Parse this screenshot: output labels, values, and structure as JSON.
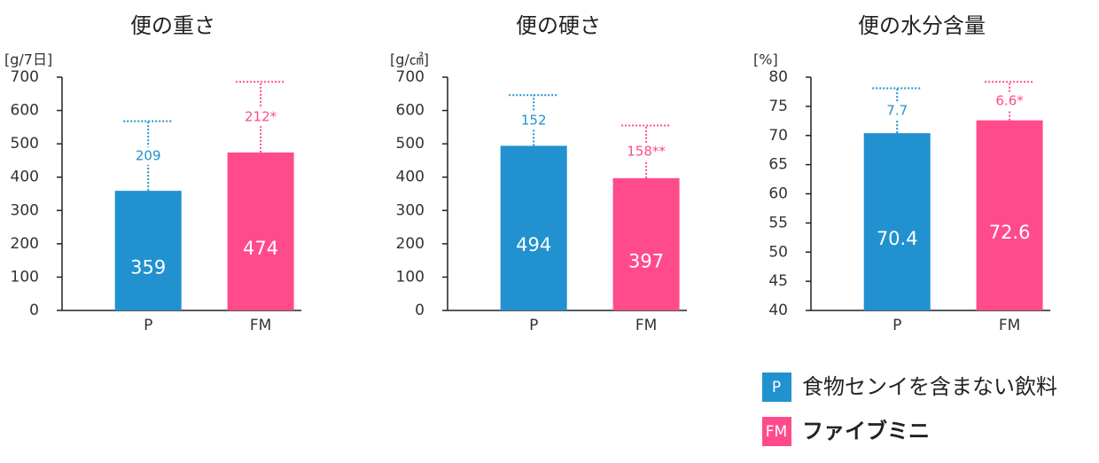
{
  "chart_data": [
    {
      "type": "bar",
      "title": "便の重さ",
      "y_label": "[g/7日]",
      "categories": [
        "P",
        "FM"
      ],
      "values": [
        359,
        474
      ],
      "errors": [
        209,
        212
      ],
      "error_labels": [
        "209",
        "212*"
      ],
      "colors": [
        "#2291cf",
        "#ff4b8b"
      ],
      "ylim": [
        0,
        700
      ],
      "yticks": [
        0,
        100,
        200,
        300,
        400,
        500,
        600,
        700
      ]
    },
    {
      "type": "bar",
      "title": "便の硬さ",
      "y_label": "[g/㎠]",
      "categories": [
        "P",
        "FM"
      ],
      "values": [
        494,
        397
      ],
      "errors": [
        152,
        158
      ],
      "error_labels": [
        "152",
        "158**"
      ],
      "colors": [
        "#2291cf",
        "#ff4b8b"
      ],
      "ylim": [
        0,
        700
      ],
      "yticks": [
        0,
        100,
        200,
        300,
        400,
        500,
        600,
        700
      ]
    },
    {
      "type": "bar",
      "title": "便の水分含量",
      "y_label": "[%]",
      "categories": [
        "P",
        "FM"
      ],
      "values": [
        70.4,
        72.6
      ],
      "errors": [
        7.7,
        6.6
      ],
      "error_labels": [
        "7.7",
        "6.6*"
      ],
      "colors": [
        "#2291cf",
        "#ff4b8b"
      ],
      "ylim": [
        40,
        80
      ],
      "yticks": [
        40,
        45,
        50,
        55,
        60,
        65,
        70,
        75,
        80
      ]
    }
  ],
  "legend": [
    {
      "key": "P",
      "label": "食物センイを含まない飲料",
      "color": "#2291cf"
    },
    {
      "key": "FM",
      "label": "ファイブミニ",
      "color": "#ff4b8b"
    }
  ]
}
